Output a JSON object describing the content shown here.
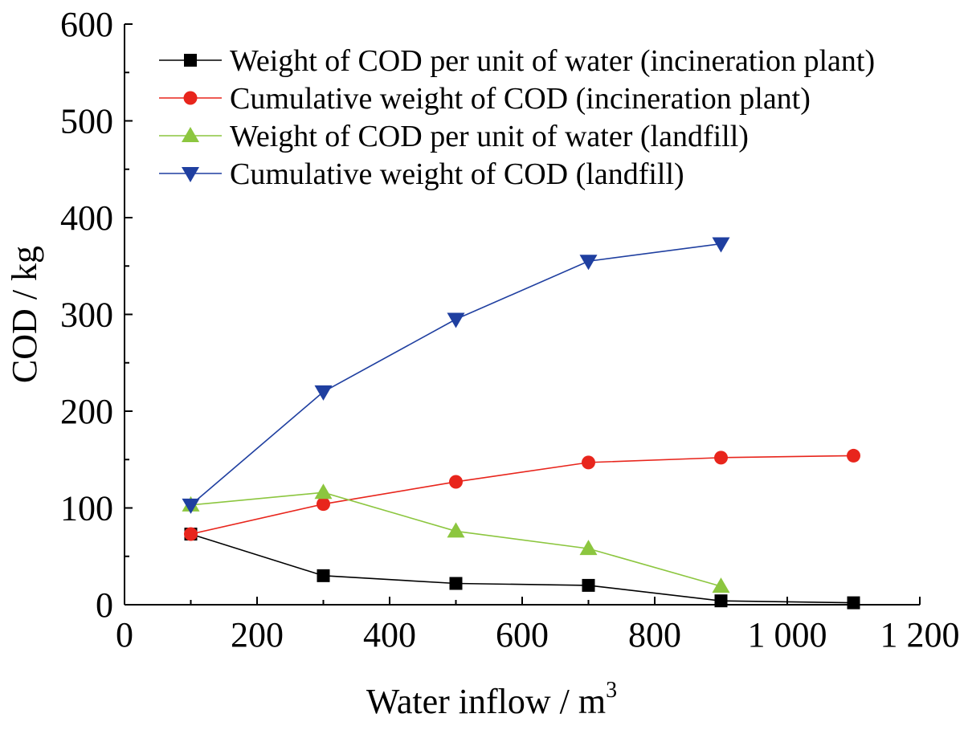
{
  "chart_data": {
    "type": "line",
    "title": "",
    "xlabel": "Water inflow / m",
    "xlabel_sup": "3",
    "ylabel": "COD / kg",
    "xlim": [
      0,
      1200
    ],
    "ylim": [
      0,
      600
    ],
    "x_ticks": [
      0,
      200,
      400,
      600,
      800,
      1000,
      1200
    ],
    "x_tick_labels": [
      "0",
      "200",
      "400",
      "600",
      "800",
      "1 000",
      "1 200"
    ],
    "y_ticks": [
      0,
      100,
      200,
      300,
      400,
      500,
      600
    ],
    "y_tick_labels": [
      "0",
      "100",
      "200",
      "300",
      "400",
      "500",
      "600"
    ],
    "legend_position": "top-right",
    "series": [
      {
        "name": "Weight of COD per unit of water (incineration plant)",
        "color": "#000000",
        "marker": "square",
        "x": [
          100,
          300,
          500,
          700,
          900,
          1100
        ],
        "values": [
          73,
          30,
          22,
          20,
          4,
          2
        ]
      },
      {
        "name": "Cumulative weight of COD (incineration plant)",
        "color": "#e8251c",
        "marker": "circle",
        "x": [
          100,
          300,
          500,
          700,
          900,
          1100
        ],
        "values": [
          73,
          104,
          127,
          147,
          152,
          154
        ]
      },
      {
        "name": "Weight of COD per unit of water (landfill)",
        "color": "#8cc63f",
        "marker": "triangle-up",
        "x": [
          100,
          300,
          500,
          700,
          900
        ],
        "values": [
          103,
          116,
          76,
          58,
          19
        ]
      },
      {
        "name": "Cumulative weight of COD (landfill)",
        "color": "#1f3fa0",
        "marker": "triangle-down",
        "x": [
          100,
          300,
          500,
          700,
          900
        ],
        "values": [
          103,
          220,
          295,
          355,
          373
        ]
      }
    ]
  }
}
